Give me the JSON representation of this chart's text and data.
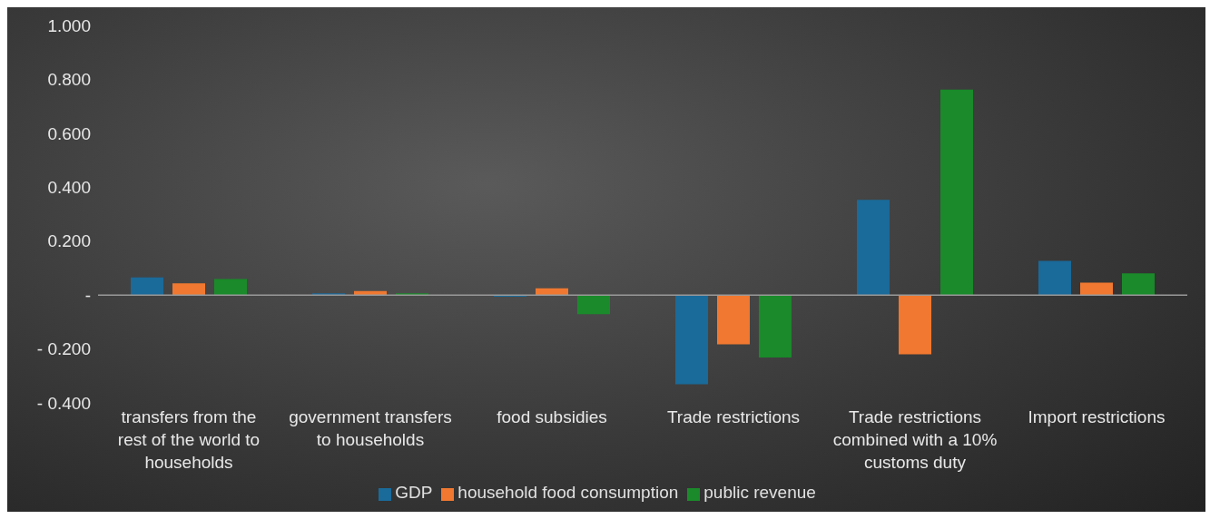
{
  "chart_data": {
    "type": "bar",
    "categories": [
      "transfers from the rest of the world to households",
      "government transfers to households",
      "food subsidies",
      "Trade restrictions",
      "Trade restrictions combined with a 10% customs duty",
      "Import restrictions"
    ],
    "series": [
      {
        "name": "GDP",
        "color": "#1a6a9a",
        "values": [
          0.065,
          0.006,
          -0.006,
          -0.331,
          0.353,
          0.127
        ]
      },
      {
        "name": "household food consumption",
        "color": "#f07830",
        "values": [
          0.043,
          0.015,
          0.025,
          -0.183,
          -0.22,
          0.046
        ]
      },
      {
        "name": "public revenue",
        "color": "#1a8a2a",
        "values": [
          0.059,
          0.006,
          -0.071,
          -0.232,
          0.762,
          0.08
        ]
      }
    ],
    "ylim": [
      -0.4,
      1.0
    ],
    "yticks": [
      {
        "value": -0.4,
        "label": "- 0.400"
      },
      {
        "value": -0.2,
        "label": "- 0.200"
      },
      {
        "value": 0,
        "label": "-"
      },
      {
        "value": 0.2,
        "label": "0.200"
      },
      {
        "value": 0.4,
        "label": "0.400"
      },
      {
        "value": 0.6,
        "label": "0.600"
      },
      {
        "value": 0.8,
        "label": "0.800"
      },
      {
        "value": 1.0,
        "label": "1.000"
      }
    ],
    "ref_lines": [
      {
        "axis": "y",
        "value": 0,
        "color": "#9a9a9a"
      }
    ],
    "legend": "bottom"
  }
}
